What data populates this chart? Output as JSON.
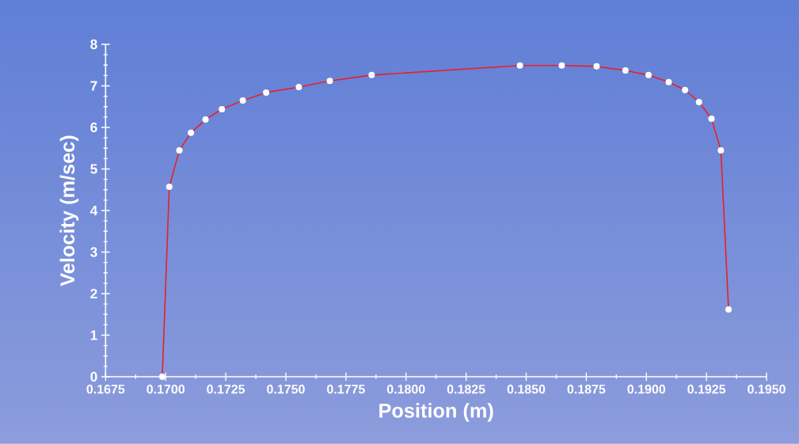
{
  "chart_data": {
    "type": "line",
    "xlabel": "Position (m)",
    "ylabel": "Velocity (m/sec)",
    "x": [
      0.16986,
      0.17015,
      0.17057,
      0.17105,
      0.17166,
      0.17234,
      0.17321,
      0.17418,
      0.17554,
      0.17683,
      0.17857,
      0.18474,
      0.18648,
      0.18793,
      0.18913,
      0.19009,
      0.19093,
      0.19161,
      0.19219,
      0.19271,
      0.1931,
      0.19342
    ],
    "series": [
      {
        "color": "#e8202a",
        "values": [
          0,
          4.57,
          5.45,
          5.87,
          6.19,
          6.44,
          6.65,
          6.84,
          6.97,
          7.12,
          7.26,
          7.49,
          7.49,
          7.47,
          7.37,
          7.26,
          7.09,
          6.9,
          6.61,
          6.21,
          5.45,
          1.62
        ]
      }
    ],
    "xlim": [
      0.1675,
      0.195
    ],
    "ylim": [
      0,
      8
    ],
    "xticks": [
      {
        "value": 0.1675,
        "label": "0.1675"
      },
      {
        "value": 0.17,
        "label": "0.1700"
      },
      {
        "value": 0.1725,
        "label": "0.1725"
      },
      {
        "value": 0.175,
        "label": "0.1750"
      },
      {
        "value": 0.1775,
        "label": "0.1775"
      },
      {
        "value": 0.18,
        "label": "0.1800"
      },
      {
        "value": 0.1825,
        "label": "0.1825"
      },
      {
        "value": 0.185,
        "label": "0.1850"
      },
      {
        "value": 0.1875,
        "label": "0.1875"
      },
      {
        "value": 0.19,
        "label": "0.1900"
      },
      {
        "value": 0.1925,
        "label": "0.1925"
      },
      {
        "value": 0.195,
        "label": "0.1950"
      }
    ],
    "yticks": [
      0,
      1,
      2,
      3,
      4,
      5,
      6,
      7,
      8
    ],
    "grid": false,
    "marker": "circle",
    "line_style": "solid"
  }
}
